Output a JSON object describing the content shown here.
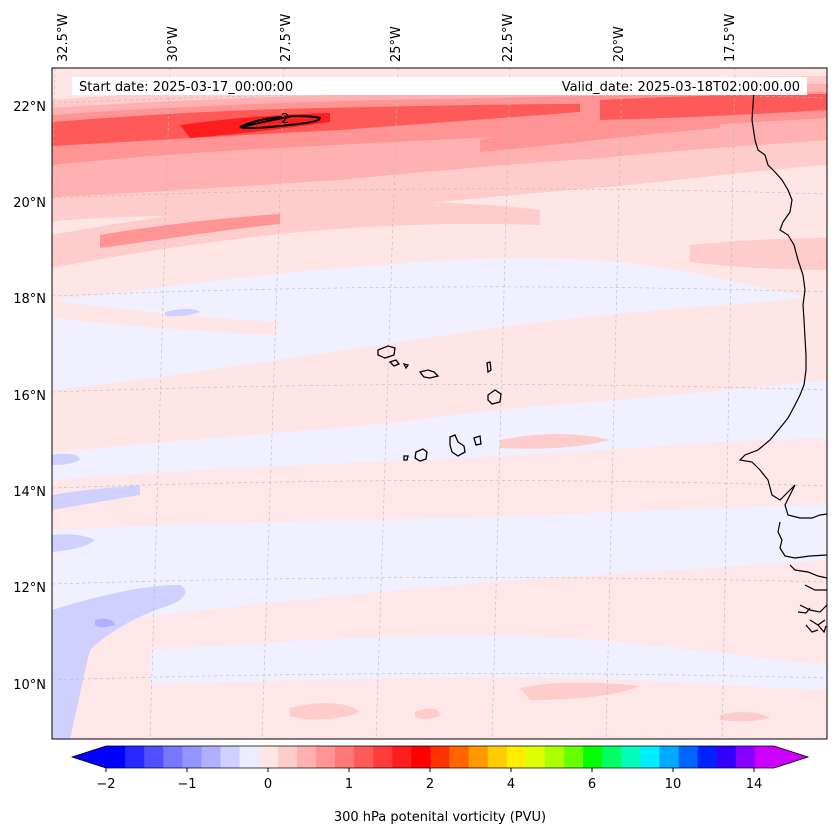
{
  "header": {
    "start_date": "Start date: 2025-03-17_00:00:00",
    "valid_date": "Valid_date: 2025-03-18T02:00:00.00"
  },
  "map": {
    "projection": "conic",
    "lon_labels": [
      "32.5°W",
      "30°W",
      "27.5°W",
      "25°W",
      "22.5°W",
      "20°W",
      "17.5°W"
    ],
    "lat_labels": [
      "22°N",
      "20°N",
      "18°N",
      "16°N",
      "14°N",
      "12°N",
      "10°N"
    ],
    "gridlines": true,
    "contour_label": "2",
    "features": [
      "coastline-africa",
      "cape-verde-islands"
    ]
  },
  "colorbar": {
    "label": "300 hPa potenital vorticity (PVU)",
    "tick_labels": [
      "−2",
      "−1",
      "0",
      "1",
      "2",
      "4",
      "6",
      "10",
      "14"
    ],
    "extend": "both",
    "colors": [
      "#0000ff",
      "#2828ff",
      "#5050ff",
      "#7878ff",
      "#9494ff",
      "#b0b0ff",
      "#d0d0ff",
      "#ececff",
      "#ffe6e6",
      "#ffcccc",
      "#ffb0b0",
      "#ff9494",
      "#ff7878",
      "#ff5a5a",
      "#ff3c3c",
      "#ff1e1e",
      "#ff0000",
      "#ff3300",
      "#ff6600",
      "#ff9900",
      "#ffcc00",
      "#ffee00",
      "#ddff00",
      "#aaff00",
      "#66ff00",
      "#00ff00",
      "#00ff66",
      "#00ffbb",
      "#00eeff",
      "#00aaff",
      "#0066ff",
      "#0022ff",
      "#3300ff",
      "#8800ff",
      "#cc00ff"
    ],
    "extend_low_color": "#0000ff",
    "extend_high_color": "#cc00ff"
  },
  "field": {
    "background": "#f0f0ff",
    "positive_light": "#ffe6e6",
    "positive_mid": "#ffcccc",
    "positive_strong": "#ff9494",
    "positive_max": "#ff1e1e",
    "negative_light": "#d0d0ff"
  }
}
